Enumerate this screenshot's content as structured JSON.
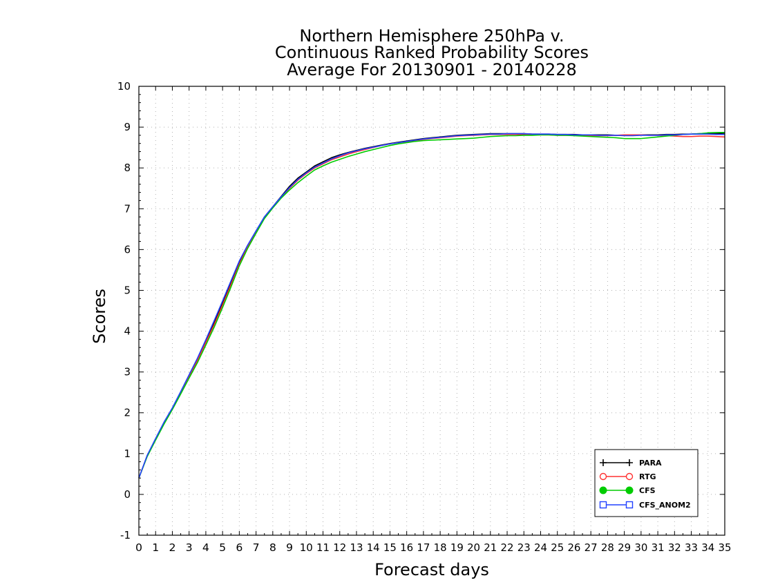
{
  "chart_data": {
    "type": "line",
    "title": [
      "Northern Hemisphere 250hPa v.",
      "Continuous Ranked Probability Scores",
      "Average For 20130901 - 20140228"
    ],
    "xlabel": "Forecast days",
    "ylabel": "Scores",
    "xlim": [
      0,
      35
    ],
    "ylim": [
      -1,
      10
    ],
    "xticks": [
      "0",
      "1",
      "2",
      "3",
      "4",
      "5",
      "6",
      "7",
      "8",
      "9",
      "10",
      "11",
      "12",
      "13",
      "14",
      "15",
      "16",
      "17",
      "18",
      "19",
      "20",
      "21",
      "22",
      "23",
      "24",
      "25",
      "26",
      "27",
      "28",
      "29",
      "30",
      "31",
      "32",
      "33",
      "34",
      "35"
    ],
    "yticks": [
      "-1",
      "0",
      "1",
      "2",
      "3",
      "4",
      "5",
      "6",
      "7",
      "8",
      "9",
      "10"
    ],
    "grid": true,
    "legend_position": "bottom-right",
    "x": [
      0,
      0.5,
      1,
      1.5,
      2,
      2.5,
      3,
      3.5,
      4,
      4.5,
      5,
      5.5,
      6,
      6.5,
      7,
      7.5,
      8,
      8.5,
      9,
      9.5,
      10,
      10.5,
      11,
      11.5,
      12,
      12.5,
      13,
      13.5,
      14,
      14.5,
      15,
      15.5,
      16,
      16.5,
      17,
      17.5,
      18,
      18.5,
      19,
      19.5,
      20,
      20.5,
      21,
      21.5,
      22,
      22.5,
      23,
      23.5,
      24,
      24.5,
      25,
      25.5,
      26,
      26.5,
      27,
      27.5,
      28,
      28.5,
      29,
      29.5,
      30,
      30.5,
      31,
      31.5,
      32,
      32.5,
      33,
      33.5,
      34,
      34.5,
      35
    ],
    "series": [
      {
        "name": "PARA",
        "color": "#000000",
        "marker": "plus",
        "values": [
          0.4,
          0.95,
          1.35,
          1.75,
          2.1,
          2.5,
          2.9,
          3.3,
          3.75,
          4.2,
          4.7,
          5.2,
          5.7,
          6.1,
          6.45,
          6.8,
          7.05,
          7.3,
          7.55,
          7.75,
          7.9,
          8.05,
          8.15,
          8.25,
          8.32,
          8.38,
          8.43,
          8.48,
          8.52,
          8.56,
          8.6,
          8.63,
          8.66,
          8.69,
          8.72,
          8.74,
          8.76,
          8.78,
          8.8,
          8.81,
          8.82,
          8.83,
          8.84,
          8.84,
          8.84,
          8.84,
          8.84,
          8.83,
          8.83,
          8.83,
          8.82,
          8.82,
          8.82,
          8.81,
          8.81,
          8.81,
          8.81,
          8.8,
          8.8,
          8.8,
          8.81,
          8.81,
          8.81,
          8.82,
          8.82,
          8.83,
          8.83,
          8.84,
          8.84,
          8.84,
          8.85
        ]
      },
      {
        "name": "RTG",
        "color": "#ff3030",
        "marker": "open-circle",
        "values": [
          0.4,
          0.95,
          1.35,
          1.75,
          2.1,
          2.5,
          2.88,
          3.28,
          3.72,
          4.16,
          4.64,
          5.14,
          5.64,
          6.06,
          6.43,
          6.78,
          7.04,
          7.28,
          7.5,
          7.7,
          7.86,
          8.0,
          8.1,
          8.2,
          8.27,
          8.34,
          8.4,
          8.45,
          8.5,
          8.55,
          8.59,
          8.62,
          8.64,
          8.67,
          8.7,
          8.72,
          8.74,
          8.76,
          8.78,
          8.79,
          8.8,
          8.81,
          8.82,
          8.82,
          8.82,
          8.82,
          8.81,
          8.81,
          8.81,
          8.81,
          8.8,
          8.8,
          8.8,
          8.79,
          8.79,
          8.79,
          8.79,
          8.8,
          8.81,
          8.81,
          8.81,
          8.8,
          8.8,
          8.79,
          8.78,
          8.77,
          8.77,
          8.78,
          8.78,
          8.77,
          8.76
        ]
      },
      {
        "name": "CFS",
        "color": "#00cc00",
        "marker": "filled-circle",
        "values": [
          0.4,
          0.93,
          1.33,
          1.72,
          2.08,
          2.46,
          2.85,
          3.23,
          3.66,
          4.1,
          4.58,
          5.08,
          5.6,
          6.03,
          6.4,
          6.76,
          7.02,
          7.26,
          7.46,
          7.64,
          7.8,
          7.95,
          8.05,
          8.14,
          8.21,
          8.28,
          8.34,
          8.4,
          8.45,
          8.5,
          8.55,
          8.59,
          8.62,
          8.65,
          8.67,
          8.68,
          8.69,
          8.7,
          8.71,
          8.72,
          8.73,
          8.75,
          8.77,
          8.78,
          8.79,
          8.79,
          8.8,
          8.8,
          8.81,
          8.81,
          8.8,
          8.8,
          8.79,
          8.78,
          8.77,
          8.76,
          8.75,
          8.74,
          8.72,
          8.72,
          8.72,
          8.74,
          8.76,
          8.78,
          8.8,
          8.82,
          8.83,
          8.84,
          8.86,
          8.87,
          8.87
        ]
      },
      {
        "name": "CFS_ANOM2",
        "color": "#2040ff",
        "marker": "open-square",
        "values": [
          0.4,
          0.96,
          1.37,
          1.77,
          2.12,
          2.52,
          2.93,
          3.34,
          3.79,
          4.26,
          4.74,
          5.23,
          5.72,
          6.11,
          6.46,
          6.8,
          7.05,
          7.29,
          7.52,
          7.72,
          7.88,
          8.02,
          8.12,
          8.22,
          8.3,
          8.37,
          8.42,
          8.47,
          8.51,
          8.55,
          8.59,
          8.62,
          8.65,
          8.68,
          8.71,
          8.73,
          8.75,
          8.77,
          8.79,
          8.8,
          8.81,
          8.82,
          8.83,
          8.83,
          8.84,
          8.84,
          8.84,
          8.83,
          8.83,
          8.83,
          8.82,
          8.82,
          8.81,
          8.81,
          8.81,
          8.8,
          8.8,
          8.8,
          8.79,
          8.79,
          8.8,
          8.8,
          8.8,
          8.81,
          8.81,
          8.82,
          8.83,
          8.83,
          8.83,
          8.82,
          8.82
        ]
      }
    ]
  }
}
